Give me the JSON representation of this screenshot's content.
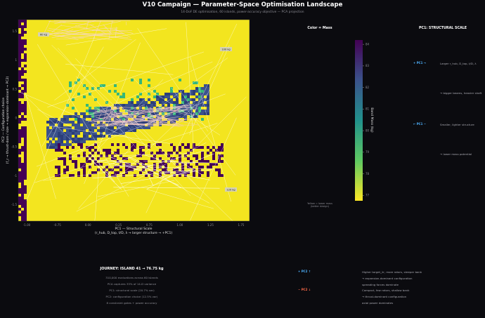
{
  "title": "V10 Campaign — Parameter-Space Optimisation Landscape",
  "subtitle": "14-DoF DE optimisation, 60 islands, power-accuracy objective — PCA projection",
  "chart_data": {
    "type": "heatmap",
    "xlabel": "PC1 — Structural Scale",
    "xlabel2": "(r_hub, D_top, t/D, λ → larger structure → +PC1)",
    "ylabel": "PC2 — Configuration choice",
    "ylabel2": "(f_r → thrust-dom / size → expansion-dominant → PC2)",
    "x_ticks": [
      "-1.00",
      "-0.75",
      "0.00",
      "0.25",
      "0.75",
      "1.00",
      "1.25",
      "1.75"
    ],
    "y_ticks": [
      "1.5",
      "1",
      "0.5",
      "0",
      "-0.5",
      "-1",
      "-1.5"
    ],
    "annotations": [
      {
        "text": "60 kg"
      },
      {
        "text": "100 kg"
      },
      {
        "text": "120 kg"
      }
    ],
    "colorbar": {
      "label": "Band Mass (kg)",
      "ticks": [
        "84",
        "83",
        "82",
        "81",
        "80",
        "79",
        "78",
        "77"
      ],
      "range": [
        76.75,
        84.2
      ]
    },
    "grid": false
  },
  "color_panel": {
    "title": "Color = Mass",
    "note1": "Yellow = lower mass",
    "note2": "(better design)"
  },
  "pc1_panel": {
    "title": "PC1: STRUCTURAL SCALE",
    "plus_label": "+ PC1 →",
    "plus_desc": "Larger r_hub, D_top, t/D, λ",
    "plus_desc2": "→ bigger beams, heavier shaft",
    "minus_label": "← PC1 −",
    "minus_desc": "Smaller, lighter structure",
    "minus_desc2": "→ lower mass potential"
  },
  "journey": {
    "title": "JOURNEY: ISLAND 41 → 76.75 kg",
    "lines": [
      "310,000 evaluations across 60 islands",
      "PCA captures 33% of 14-D variance",
      "PC1: structural scale (20.7% var)",
      "PC2: configuration choice (12.5% var)",
      "8 constraint gates + power accuracy"
    ]
  },
  "pc2_panel": {
    "up_label": "+ PC2 ↑",
    "up_desc": "Higher target_λr, more rotors, steeper bank",
    "up_desc2": "→ expansion-dominant configuration",
    "up_desc3": "spreading forces dominate",
    "down_label": "− PC2 ↓",
    "down_desc": "Compact, few rotors, shallow bank",
    "down_desc2": "→ thrust-dominant configuration",
    "down_desc3": "axial power dominates"
  },
  "colors": {
    "background": "#0b0b0f",
    "low_mass": "#fde725",
    "high_mass": "#440154",
    "trajectory": "#ffffff",
    "pc_positive": "#4fb3ff",
    "pc_negative": "#ff6b4a"
  }
}
